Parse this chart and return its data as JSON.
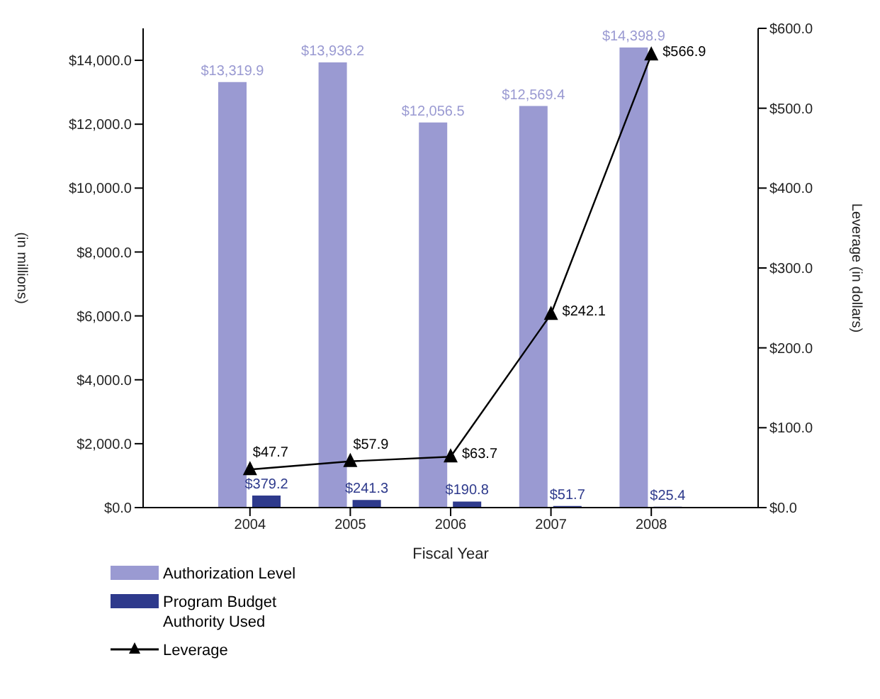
{
  "chart_data": {
    "type": "bar",
    "xlabel": "Fiscal Year",
    "ylabel": "(in millions)",
    "y2label": "Leverage (in dollars)",
    "categories": [
      "2004",
      "2005",
      "2006",
      "2007",
      "2008"
    ],
    "series": [
      {
        "name": "Authorization Level",
        "color": "#9a9ad2",
        "values": [
          13319.9,
          13936.2,
          12056.5,
          12569.4,
          14398.9
        ],
        "value_labels": [
          "$13,319.9",
          "$13,936.2",
          "$12,056.5",
          "$12,569.4",
          "$14,398.9"
        ]
      },
      {
        "name": "Program Budget Authority Used",
        "color": "#2e3a8c",
        "values": [
          379.2,
          241.3,
          190.8,
          51.7,
          25.4
        ],
        "value_labels": [
          "$379.2",
          "$241.3",
          "$190.8",
          "$51.7",
          "$25.4"
        ]
      },
      {
        "name": "Leverage",
        "type": "line",
        "axis": "y2",
        "color": "#000000",
        "marker": "triangle",
        "line_style": "solid",
        "values": [
          47.7,
          57.9,
          63.7,
          242.1,
          566.9
        ],
        "value_labels": [
          "$47.7",
          "$57.9",
          "$63.7",
          "$242.1",
          "$566.9"
        ]
      }
    ],
    "ylim": [
      0,
      15000
    ],
    "yticks": [
      {
        "value": 0,
        "label": "$0.0"
      },
      {
        "value": 2000,
        "label": "$2,000.0"
      },
      {
        "value": 4000,
        "label": "$4,000.0"
      },
      {
        "value": 6000,
        "label": "$6,000.0"
      },
      {
        "value": 8000,
        "label": "$8,000.0"
      },
      {
        "value": 10000,
        "label": "$10,000.0"
      },
      {
        "value": 12000,
        "label": "$12,000.0"
      },
      {
        "value": 14000,
        "label": "$14,000.0"
      }
    ],
    "y2lim": [
      0,
      600
    ],
    "y2ticks": [
      {
        "value": 0,
        "label": "$0.0"
      },
      {
        "value": 100,
        "label": "$100.0"
      },
      {
        "value": 200,
        "label": "$200.0"
      },
      {
        "value": 300,
        "label": "$300.0"
      },
      {
        "value": 400,
        "label": "$400.0"
      },
      {
        "value": 500,
        "label": "$500.0"
      },
      {
        "value": 600,
        "label": "$600.0"
      }
    ],
    "grid": false,
    "legend": "bottom left"
  }
}
